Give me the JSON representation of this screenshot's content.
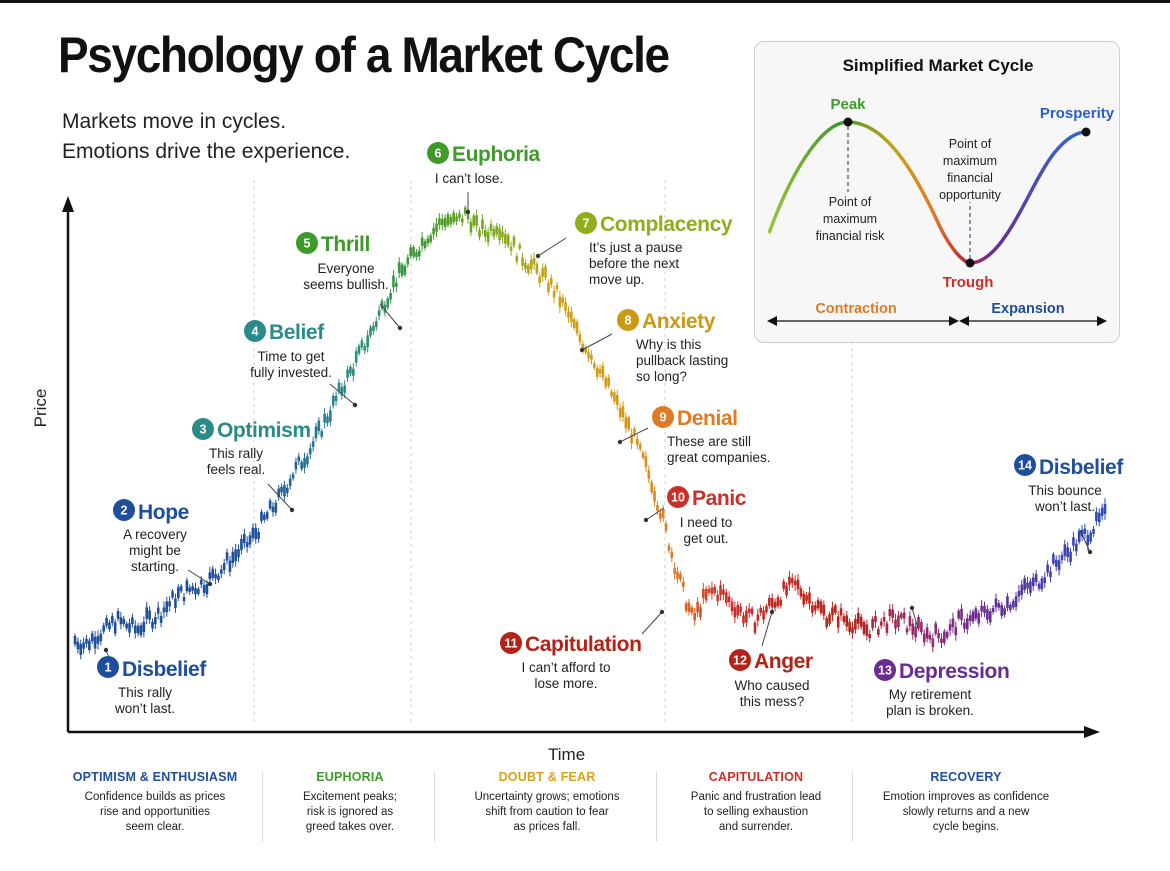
{
  "title": "Psychology of a Market Cycle",
  "subtitle_lines": [
    "Markets move in cycles.",
    "Emotions drive the experience."
  ],
  "chart_data": {
    "type": "line",
    "xlabel": "Time",
    "ylabel": "Price",
    "note": "Candlestick-style price path (values in relative units, axes unlabeled in source)",
    "x": [
      0,
      1,
      2,
      3,
      4,
      5,
      6,
      7,
      8,
      9,
      10,
      11,
      12,
      13,
      14,
      15,
      16,
      17,
      18,
      19,
      20,
      21,
      22,
      23,
      24,
      25,
      26,
      27,
      28,
      29,
      30,
      31,
      32,
      33,
      34,
      35,
      36,
      37,
      38,
      39,
      40,
      41,
      42,
      43,
      44,
      45,
      46,
      47,
      48,
      49,
      50,
      51,
      52,
      53,
      54,
      55,
      56,
      57,
      58,
      59,
      60,
      61,
      62,
      63,
      64,
      65,
      66,
      67,
      68,
      69,
      70,
      71,
      72,
      73,
      74,
      75,
      76,
      77,
      78,
      79,
      80,
      81,
      82,
      83,
      84,
      85,
      86,
      87,
      88,
      89,
      90,
      91,
      92,
      93,
      94,
      95,
      96,
      97,
      98,
      99,
      100
    ],
    "series": [
      {
        "values": [
          10,
          9,
          11,
          12,
          14,
          13,
          12,
          14,
          15,
          17,
          19,
          20,
          21,
          22,
          24,
          26,
          28,
          30,
          33,
          36,
          39,
          43,
          46,
          49,
          53,
          57,
          61,
          65,
          69,
          73,
          78,
          82,
          85,
          88,
          91,
          93,
          95,
          94,
          96,
          93,
          92,
          94,
          91,
          88,
          86,
          84,
          82,
          79,
          75,
          71,
          68,
          64,
          60,
          56,
          52,
          47,
          42,
          35,
          27,
          20,
          14,
          18,
          20,
          19,
          17,
          15,
          14,
          16,
          18,
          20,
          21,
          19,
          17,
          15,
          15,
          14,
          13,
          12,
          13,
          14,
          14,
          13,
          12,
          11,
          11,
          12,
          14,
          14,
          15,
          16,
          17,
          18,
          20,
          21,
          23,
          25,
          27,
          29,
          31,
          33,
          35
        ]
      }
    ],
    "stages": [
      {
        "num": "1",
        "name": "Disbelief",
        "quote": [
          "This rally",
          "won’t last."
        ]
      },
      {
        "num": "2",
        "name": "Hope",
        "quote": [
          "A recovery",
          "might be",
          "starting."
        ]
      },
      {
        "num": "3",
        "name": "Optimism",
        "quote": [
          "This rally",
          "feels real."
        ]
      },
      {
        "num": "4",
        "name": "Belief",
        "quote": [
          "Time to get",
          "fully invested."
        ]
      },
      {
        "num": "5",
        "name": "Thrill",
        "quote": [
          "Everyone",
          "seems bullish."
        ]
      },
      {
        "num": "6",
        "name": "Euphoria",
        "quote": [
          "I can’t lose."
        ]
      },
      {
        "num": "7",
        "name": "Complacency",
        "quote": [
          "It’s just a pause",
          "before the next",
          "move up."
        ]
      },
      {
        "num": "8",
        "name": "Anxiety",
        "quote": [
          "Why is this",
          "pullback lasting",
          "so long?"
        ]
      },
      {
        "num": "9",
        "name": "Denial",
        "quote": [
          "These are still",
          "great companies."
        ]
      },
      {
        "num": "10",
        "name": "Panic",
        "quote": [
          "I need to",
          "get out."
        ]
      },
      {
        "num": "11",
        "name": "Capitulation",
        "quote": [
          "I can’t afford to",
          "lose more."
        ]
      },
      {
        "num": "12",
        "name": "Anger",
        "quote": [
          "Who caused",
          "this mess?"
        ]
      },
      {
        "num": "13",
        "name": "Depression",
        "quote": [
          "My retirement",
          "plan is broken."
        ]
      },
      {
        "num": "14",
        "name": "Disbelief",
        "quote": [
          "This bounce",
          "won’t last."
        ]
      }
    ],
    "colors": {
      "blue": "#1f4e9c",
      "teal": "#2b8a8a",
      "green": "#3e9a2b",
      "yellowgreen": "#8fae1b",
      "gold": "#c99a12",
      "orange": "#e07a24",
      "red": "#c9302c",
      "darkred": "#b52318",
      "purple": "#6a2c91"
    }
  },
  "inset": {
    "title": "Simplified Market Cycle",
    "labels": {
      "peak": "Peak",
      "prosperity": "Prosperity",
      "trough": "Trough",
      "risk": [
        "Point of",
        "maximum",
        "financial risk"
      ],
      "opportunity": [
        "Point of",
        "maximum",
        "financial",
        "opportunity"
      ],
      "contraction": "Contraction",
      "expansion": "Expansion"
    }
  },
  "phases": [
    {
      "name": "OPTIMISM & ENTHUSIASM",
      "color": "#1f4e9c",
      "desc": [
        "Confidence builds as prices",
        "rise and opportunities",
        "seem clear."
      ]
    },
    {
      "name": "EUPHORIA",
      "color": "#3e9a2b",
      "desc": [
        "Excitement peaks;",
        "risk is ignored as",
        "greed takes over."
      ]
    },
    {
      "name": "DOUBT & FEAR",
      "color": "#d9a21a",
      "desc": [
        "Uncertainty grows; emotions",
        "shift from caution to fear",
        "as prices fall."
      ]
    },
    {
      "name": "CAPITULATION",
      "color": "#c9302c",
      "desc": [
        "Panic and frustration lead",
        "to selling exhaustion",
        "and surrender."
      ]
    },
    {
      "name": "RECOVERY",
      "color": "#1f4e9c",
      "desc": [
        "Emotion improves as confidence",
        "slowly returns and a new",
        "cycle begins."
      ]
    }
  ]
}
